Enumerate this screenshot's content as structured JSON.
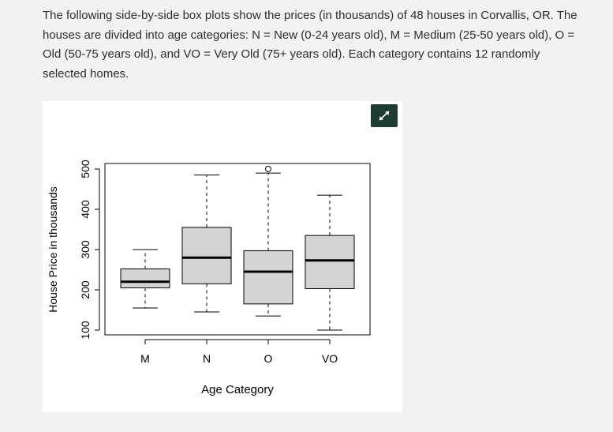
{
  "intro": {
    "text": "The following side-by-side box plots show the prices (in thousands) of 48 houses in Corvallis, OR. The houses are divided into age categories: N = New (0-24 years old), M = Medium (25-50 years old), O = Old (50-75 years old), and VO = Very Old (75+ years old). Each category contains 12 randomly selected homes."
  },
  "expand_button": {
    "icon": "expand-arrows-icon",
    "color": "#1e3b34"
  },
  "chart_data": {
    "type": "boxplot",
    "title": "",
    "xlabel": "Age Category",
    "ylabel": "House Price in thousands",
    "ylim": [
      100,
      500
    ],
    "yticks": [
      100,
      200,
      300,
      400,
      500
    ],
    "categories": [
      "M",
      "N",
      "O",
      "VO"
    ],
    "boxes": [
      {
        "category": "M",
        "min": 155,
        "q1": 205,
        "median": 220,
        "q3": 252,
        "max": 300,
        "outliers": []
      },
      {
        "category": "N",
        "min": 145,
        "q1": 215,
        "median": 280,
        "q3": 355,
        "max": 485,
        "outliers": []
      },
      {
        "category": "O",
        "min": 135,
        "q1": 165,
        "median": 245,
        "q3": 297,
        "max": 490,
        "outliers": [
          500
        ]
      },
      {
        "category": "VO",
        "min": 100,
        "q1": 203,
        "median": 273,
        "q3": 335,
        "max": 435,
        "outliers": []
      }
    ],
    "box_fill": "#d3d3d3",
    "grid": false,
    "legend": "none"
  }
}
